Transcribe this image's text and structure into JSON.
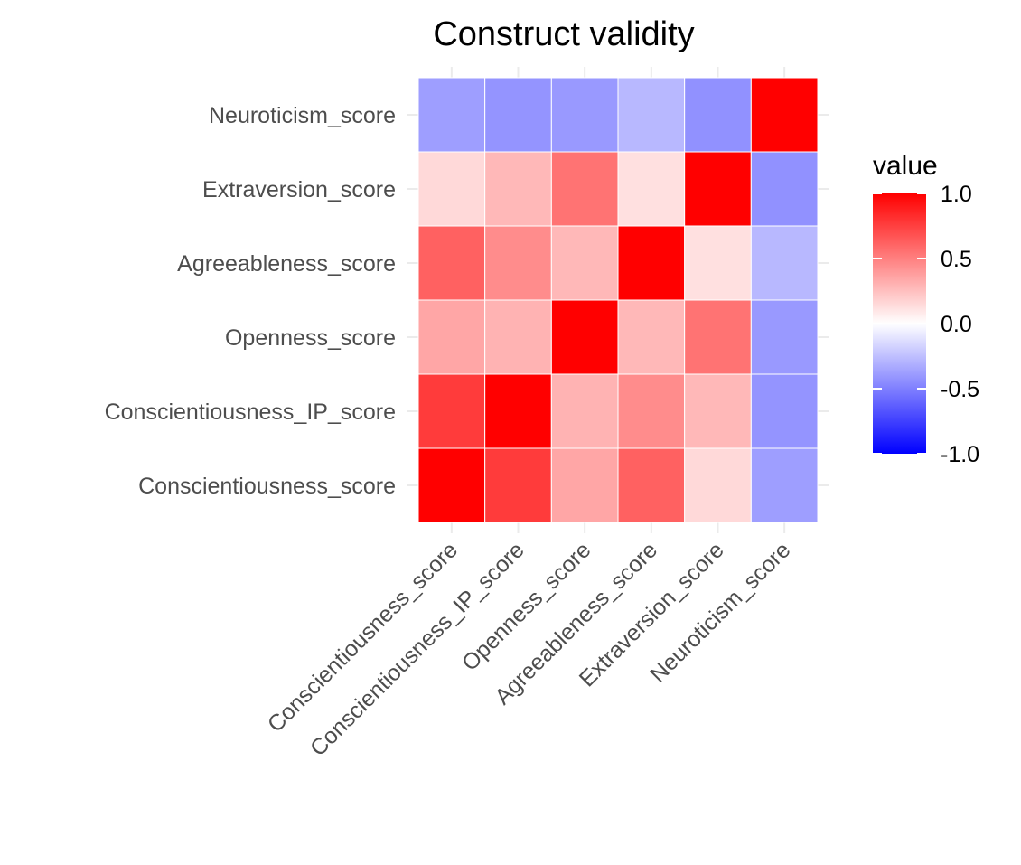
{
  "chart_data": {
    "type": "heatmap",
    "title": "Construct validity",
    "x_labels": [
      "Conscientiousness_score",
      "Conscientiousness_IP_score",
      "Openness_score",
      "Agreeableness_score",
      "Extraversion_score",
      "Neuroticism_score"
    ],
    "y_labels": [
      "Conscientiousness_score",
      "Conscientiousness_IP_score",
      "Openness_score",
      "Agreeableness_score",
      "Extraversion_score",
      "Neuroticism_score"
    ],
    "values": [
      [
        1.0,
        0.77,
        0.35,
        0.62,
        0.15,
        -0.38
      ],
      [
        0.77,
        1.0,
        0.3,
        0.45,
        0.28,
        -0.42
      ],
      [
        0.35,
        0.3,
        1.0,
        0.28,
        0.55,
        -0.4
      ],
      [
        0.62,
        0.45,
        0.28,
        1.0,
        0.12,
        -0.28
      ],
      [
        0.15,
        0.28,
        0.55,
        0.12,
        1.0,
        -0.43
      ],
      [
        -0.38,
        -0.42,
        -0.4,
        -0.28,
        -0.43,
        1.0
      ]
    ],
    "legend": {
      "title": "value",
      "position": "right",
      "ticks": [
        1.0,
        0.5,
        0.0,
        -0.5,
        -1.0
      ],
      "tick_labels": [
        "1.0",
        "0.5",
        "0.0",
        "-0.5",
        "-1.0"
      ],
      "range": [
        -1,
        1
      ],
      "low_color": "#0000ff",
      "mid_color": "#ffffff",
      "high_color": "#ff0000"
    },
    "grid": true
  }
}
